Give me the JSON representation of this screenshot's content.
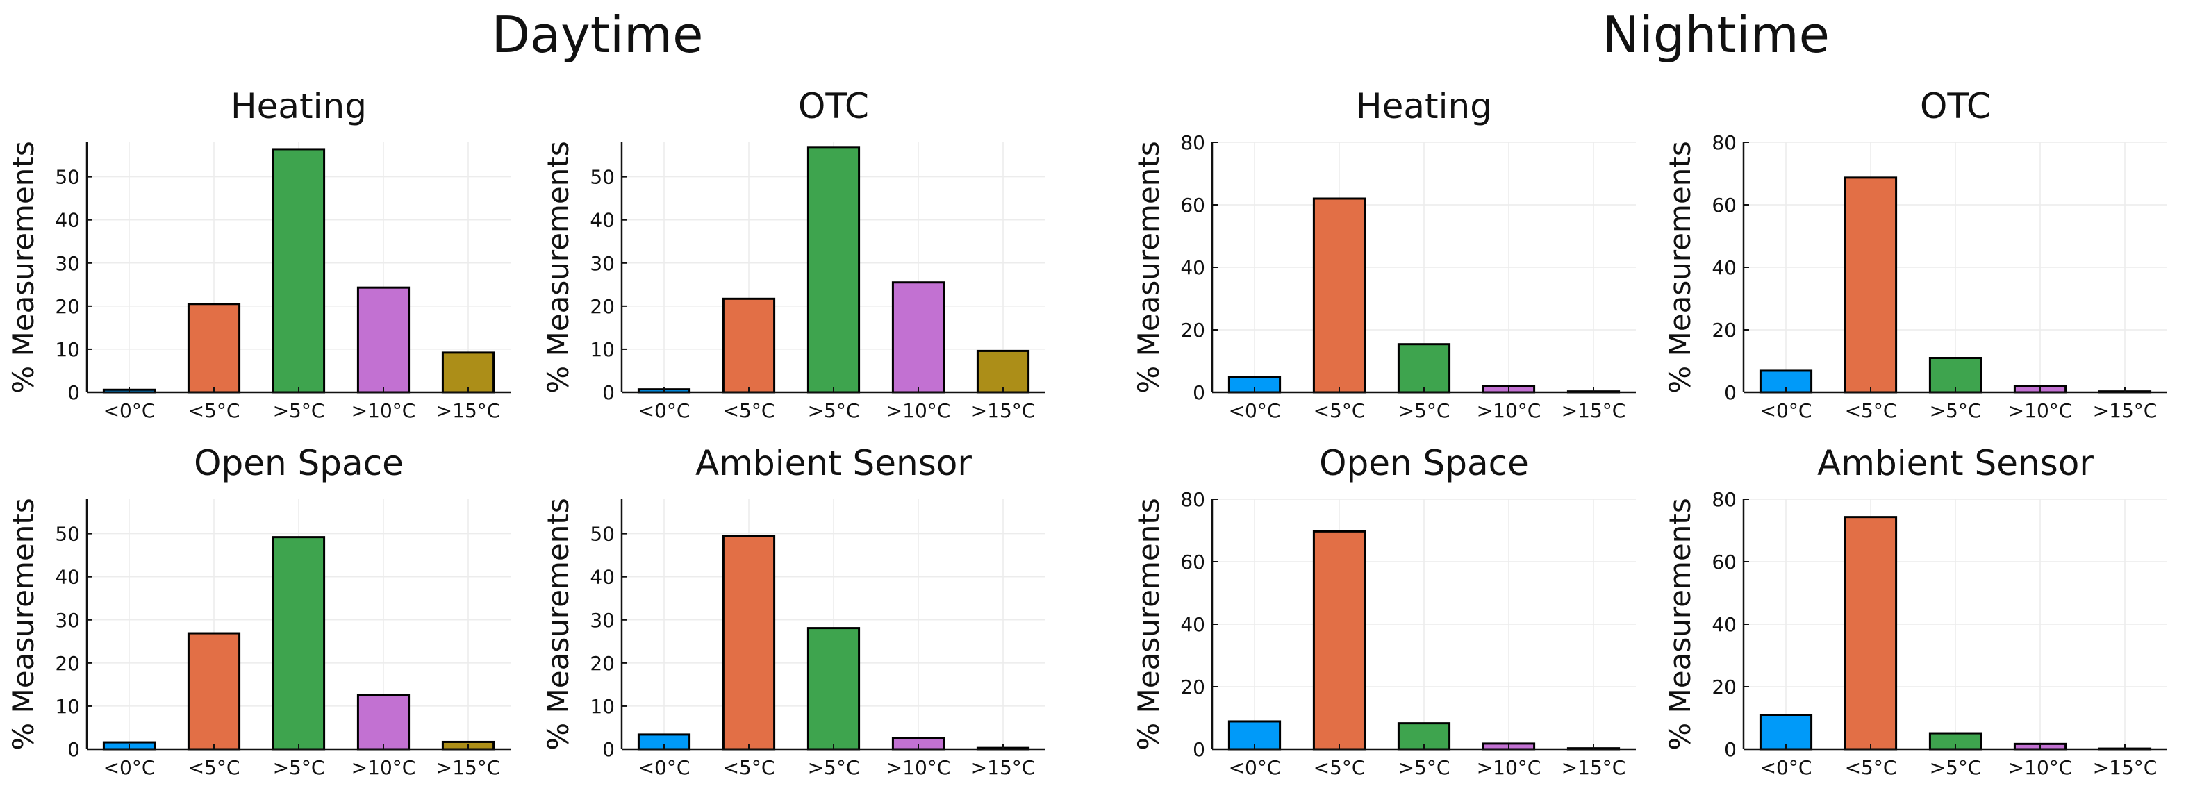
{
  "groups": [
    {
      "title": "Daytime",
      "panels": [
        0,
        1,
        2,
        3
      ]
    },
    {
      "title": "Nightime",
      "panels": [
        4,
        5,
        6,
        7
      ]
    }
  ],
  "colors": [
    "#009af9",
    "#e26f46",
    "#3ea44e",
    "#c271d2",
    "#ac8e18"
  ],
  "chart_data": [
    {
      "type": "bar",
      "title": "Heating",
      "ylabel": "% Measurements",
      "categories": [
        "<0°C",
        "<5°C",
        ">5°C",
        ">10°C",
        ">15°C"
      ],
      "values": [
        0.6,
        20.5,
        56.4,
        24.3,
        9.2
      ],
      "ylim": [
        0,
        58
      ],
      "yticks": [
        0,
        10,
        20,
        30,
        40,
        50
      ]
    },
    {
      "type": "bar",
      "title": "OTC",
      "ylabel": "% Measurements",
      "categories": [
        "<0°C",
        "<5°C",
        ">5°C",
        ">10°C",
        ">15°C"
      ],
      "values": [
        0.7,
        21.7,
        56.9,
        25.5,
        9.6
      ],
      "ylim": [
        0,
        58
      ],
      "yticks": [
        0,
        10,
        20,
        30,
        40,
        50
      ]
    },
    {
      "type": "bar",
      "title": "Open Space",
      "ylabel": "% Measurements",
      "categories": [
        "<0°C",
        "<5°C",
        ">5°C",
        ">10°C",
        ">15°C"
      ],
      "values": [
        1.6,
        26.9,
        49.2,
        12.6,
        1.7
      ],
      "ylim": [
        0,
        58
      ],
      "yticks": [
        0,
        10,
        20,
        30,
        40,
        50
      ]
    },
    {
      "type": "bar",
      "title": "Ambient Sensor",
      "ylabel": "% Measurements",
      "categories": [
        "<0°C",
        "<5°C",
        ">5°C",
        ">10°C",
        ">15°C"
      ],
      "values": [
        3.4,
        49.5,
        28.1,
        2.6,
        0.3
      ],
      "ylim": [
        0,
        58
      ],
      "yticks": [
        0,
        10,
        20,
        30,
        40,
        50
      ]
    },
    {
      "type": "bar",
      "title": "Heating",
      "ylabel": "% Measurements",
      "categories": [
        "<0°C",
        "<5°C",
        ">5°C",
        ">10°C",
        ">15°C"
      ],
      "values": [
        4.8,
        62.0,
        15.4,
        2.0,
        0.3
      ],
      "ylim": [
        0,
        80
      ],
      "yticks": [
        0,
        20,
        40,
        60,
        80
      ]
    },
    {
      "type": "bar",
      "title": "OTC",
      "ylabel": "% Measurements",
      "categories": [
        "<0°C",
        "<5°C",
        ">5°C",
        ">10°C",
        ">15°C"
      ],
      "values": [
        6.9,
        68.7,
        11.0,
        2.0,
        0.3
      ],
      "ylim": [
        0,
        80
      ],
      "yticks": [
        0,
        20,
        40,
        60,
        80
      ]
    },
    {
      "type": "bar",
      "title": "Open Space",
      "ylabel": "% Measurements",
      "categories": [
        "<0°C",
        "<5°C",
        ">5°C",
        ">10°C",
        ">15°C"
      ],
      "values": [
        8.9,
        69.7,
        8.3,
        1.8,
        0.3
      ],
      "ylim": [
        0,
        80
      ],
      "yticks": [
        0,
        20,
        40,
        60,
        80
      ]
    },
    {
      "type": "bar",
      "title": "Ambient Sensor",
      "ylabel": "% Measurements",
      "categories": [
        "<0°C",
        "<5°C",
        ">5°C",
        ">10°C",
        ">15°C"
      ],
      "values": [
        11.0,
        74.3,
        5.1,
        1.7,
        0.2
      ],
      "ylim": [
        0,
        80
      ],
      "yticks": [
        0,
        20,
        40,
        60,
        80
      ]
    }
  ]
}
